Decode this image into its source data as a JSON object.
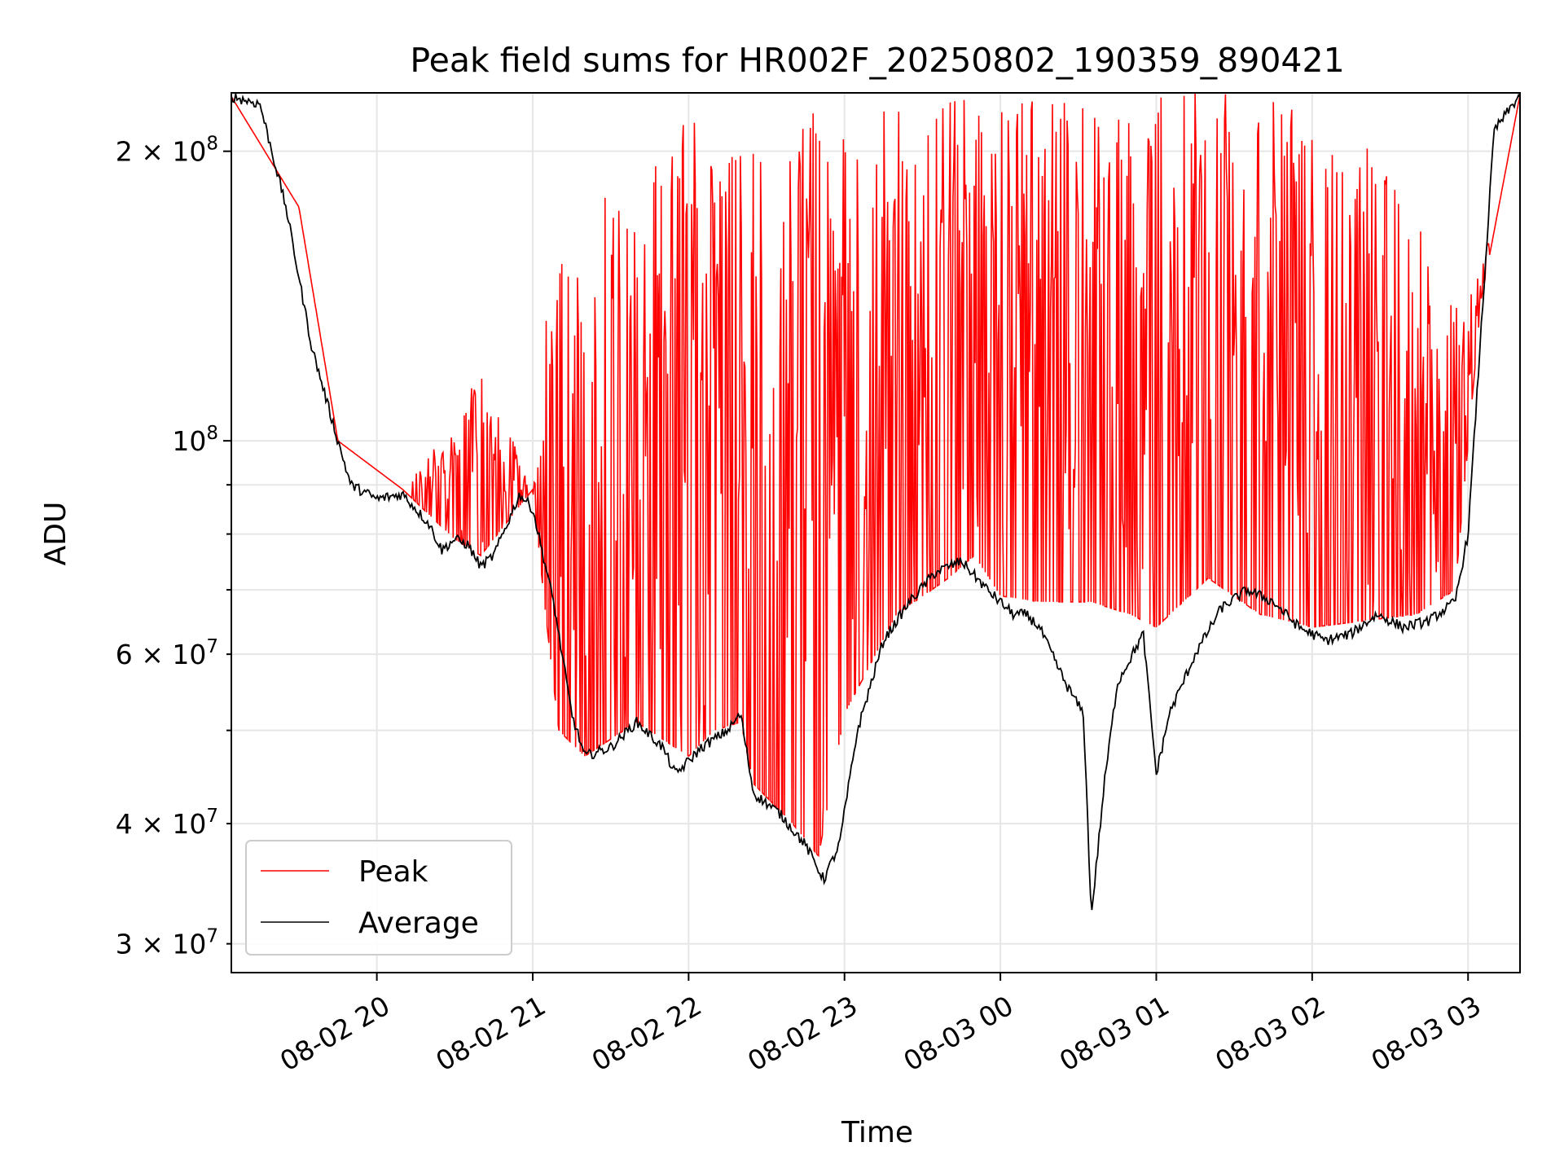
{
  "chart_data": {
    "type": "line",
    "title": "Peak field sums for HR002F_20250802_190359_890421",
    "xlabel": "Time",
    "ylabel": "ADU",
    "yscale": "log",
    "ylim": [
      28000000,
      230000000
    ],
    "xlim": [
      "2025-08-02 19:04",
      "2025-08-03 03:20"
    ],
    "grid": true,
    "legend_position": "lower-left",
    "x_tick_labels": [
      "08-02 20",
      "08-02 21",
      "08-02 22",
      "08-02 23",
      "08-03 00",
      "08-03 01",
      "08-03 02",
      "08-03 03"
    ],
    "x_ticks": [
      "2025-08-02 20:00",
      "2025-08-02 21:00",
      "2025-08-02 22:00",
      "2025-08-02 23:00",
      "2025-08-03 00:00",
      "2025-08-03 01:00",
      "2025-08-03 02:00",
      "2025-08-03 03:00"
    ],
    "y_major_ticks": [
      {
        "value": 100000000,
        "mantissa": "",
        "base": "10",
        "exp": "8"
      },
      {
        "value": 200000000,
        "mantissa": "2 × ",
        "base": "10",
        "exp": "8"
      }
    ],
    "y_minor_ticks": [
      {
        "value": 30000000,
        "mantissa": "3 × ",
        "base": "10",
        "exp": "7"
      },
      {
        "value": 40000000,
        "mantissa": "4 × ",
        "base": "10",
        "exp": "7"
      },
      {
        "value": 50000000,
        "mantissa": "",
        "base": "",
        "exp": ""
      },
      {
        "value": 60000000,
        "mantissa": "6 × ",
        "base": "10",
        "exp": "7"
      },
      {
        "value": 70000000,
        "mantissa": "",
        "base": "",
        "exp": ""
      },
      {
        "value": 80000000,
        "mantissa": "",
        "base": "",
        "exp": ""
      },
      {
        "value": 90000000,
        "mantissa": "",
        "base": "",
        "exp": ""
      }
    ],
    "series": [
      {
        "name": "Peak",
        "color": "#ff0000",
        "x": [
          "2025-08-02 19:04",
          "2025-08-02 19:30",
          "2025-08-02 19:45",
          "2025-08-02 20:10",
          "2025-08-02 20:30",
          "2025-08-02 20:40",
          "2025-08-02 21:00",
          "2025-08-02 21:05",
          "2025-08-02 21:10",
          "2025-08-02 21:20",
          "2025-08-02 21:40",
          "2025-08-02 22:00",
          "2025-08-02 22:10",
          "2025-08-02 22:20",
          "2025-08-02 22:25",
          "2025-08-02 22:40",
          "2025-08-02 22:50",
          "2025-08-02 23:00",
          "2025-08-02 23:20",
          "2025-08-02 23:40",
          "2025-08-02 23:50",
          "2025-08-03 00:00",
          "2025-08-03 00:15",
          "2025-08-03 00:35",
          "2025-08-03 00:50",
          "2025-08-03 01:00",
          "2025-08-03 01:20",
          "2025-08-03 01:40",
          "2025-08-03 02:00",
          "2025-08-03 02:20",
          "2025-08-03 02:40",
          "2025-08-03 02:55",
          "2025-08-03 03:05",
          "2025-08-03 03:20"
        ],
        "values": [
          228000000,
          175000000,
          100000000,
          89000000,
          79000000,
          76000000,
          89000000,
          66000000,
          50000000,
          47000000,
          51000000,
          47000000,
          50000000,
          51000000,
          44000000,
          40000000,
          37000000,
          52000000,
          66000000,
          72000000,
          76000000,
          69000000,
          68000000,
          68000000,
          66000000,
          64000000,
          72000000,
          66000000,
          64000000,
          65000000,
          66000000,
          70000000,
          140000000,
          229000000
        ],
        "peak_envelope": [
          228000000,
          175000000,
          100000000,
          89000000,
          105000000,
          121000000,
          89000000,
          135000000,
          160000000,
          180000000,
          185000000,
          225000000,
          210000000,
          215000000,
          200000000,
          210000000,
          230000000,
          220000000,
          230000000,
          230000000,
          230000000,
          230000000,
          230000000,
          230000000,
          230000000,
          230000000,
          230000000,
          230000000,
          220000000,
          210000000,
          170000000,
          140000000,
          150000000,
          229000000
        ]
      },
      {
        "name": "Average",
        "color": "#000000",
        "x": [
          "2025-08-02 19:04",
          "2025-08-02 19:15",
          "2025-08-02 19:25",
          "2025-08-02 19:35",
          "2025-08-02 19:45",
          "2025-08-02 19:50",
          "2025-08-02 20:00",
          "2025-08-02 20:10",
          "2025-08-02 20:20",
          "2025-08-02 20:25",
          "2025-08-02 20:30",
          "2025-08-02 20:35",
          "2025-08-02 20:40",
          "2025-08-02 20:45",
          "2025-08-02 20:55",
          "2025-08-02 21:00",
          "2025-08-02 21:08",
          "2025-08-02 21:15",
          "2025-08-02 21:20",
          "2025-08-02 21:30",
          "2025-08-02 21:40",
          "2025-08-02 21:50",
          "2025-08-02 21:55",
          "2025-08-02 22:05",
          "2025-08-02 22:15",
          "2025-08-02 22:20",
          "2025-08-02 22:25",
          "2025-08-02 22:35",
          "2025-08-02 22:45",
          "2025-08-02 22:52",
          "2025-08-02 22:58",
          "2025-08-02 23:05",
          "2025-08-02 23:15",
          "2025-08-02 23:25",
          "2025-08-02 23:35",
          "2025-08-02 23:45",
          "2025-08-02 23:55",
          "2025-08-03 00:05",
          "2025-08-03 00:10",
          "2025-08-03 00:15",
          "2025-08-03 00:25",
          "2025-08-03 00:32",
          "2025-08-03 00:35",
          "2025-08-03 00:40",
          "2025-08-03 00:45",
          "2025-08-03 00:55",
          "2025-08-03 01:00",
          "2025-08-03 01:05",
          "2025-08-03 01:15",
          "2025-08-03 01:25",
          "2025-08-03 01:35",
          "2025-08-03 01:45",
          "2025-08-03 01:55",
          "2025-08-03 02:05",
          "2025-08-03 02:15",
          "2025-08-03 02:25",
          "2025-08-03 02:35",
          "2025-08-03 02:45",
          "2025-08-03 02:55",
          "2025-08-03 03:00",
          "2025-08-03 03:05",
          "2025-08-03 03:10",
          "2025-08-03 03:20"
        ],
        "values": [
          228000000,
          224000000,
          175000000,
          125000000,
          100000000,
          90000000,
          87000000,
          88000000,
          82000000,
          77000000,
          79000000,
          78000000,
          74000000,
          76000000,
          88000000,
          85000000,
          68000000,
          52000000,
          47000000,
          48000000,
          51000000,
          48000000,
          45000000,
          48000000,
          50000000,
          52000000,
          43000000,
          41000000,
          38000000,
          35000000,
          38000000,
          50000000,
          62000000,
          68000000,
          73000000,
          75000000,
          70000000,
          66000000,
          66000000,
          64000000,
          56000000,
          52000000,
          32000000,
          44000000,
          56000000,
          63000000,
          45000000,
          52000000,
          60000000,
          67000000,
          70000000,
          68000000,
          64000000,
          62000000,
          63000000,
          66000000,
          64000000,
          65000000,
          68000000,
          80000000,
          130000000,
          210000000,
          229000000
        ]
      }
    ]
  }
}
